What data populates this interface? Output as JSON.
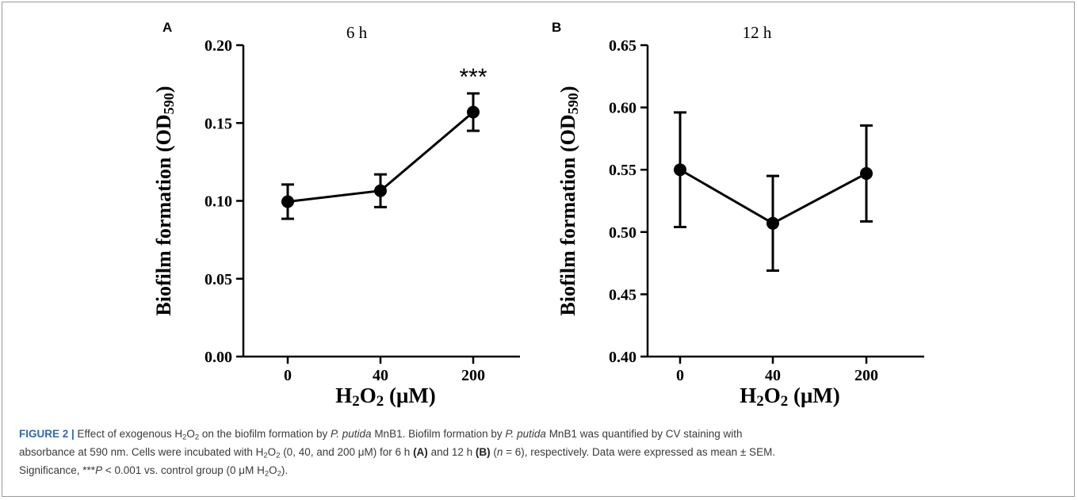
{
  "chart_data": [
    {
      "panel": "A",
      "type": "line",
      "title": "6 h",
      "ylabel": "Biofilm formation (OD590)",
      "xlabel": "H2O2 (μM)",
      "categories": [
        "0",
        "40",
        "200"
      ],
      "values": [
        0.0995,
        0.1065,
        0.157
      ],
      "error": [
        0.011,
        0.0105,
        0.012
      ],
      "significance": [
        "",
        "",
        "***"
      ],
      "ylim": [
        0.0,
        0.2
      ],
      "yticks": [
        "0.00",
        "0.05",
        "0.10",
        "0.15",
        "0.20"
      ],
      "grid": false
    },
    {
      "panel": "B",
      "type": "line",
      "title": "12 h",
      "ylabel": "Biofilm formation (OD590)",
      "xlabel": "H2O2 (μM)",
      "categories": [
        "0",
        "40",
        "200"
      ],
      "values": [
        0.55,
        0.507,
        0.547
      ],
      "error": [
        0.046,
        0.038,
        0.0385
      ],
      "significance": [
        "",
        "",
        ""
      ],
      "ylim": [
        0.4,
        0.65
      ],
      "yticks": [
        "0.40",
        "0.45",
        "0.50",
        "0.55",
        "0.60",
        "0.65"
      ],
      "grid": false
    }
  ],
  "caption": {
    "figure_label": "FIGURE 2 |",
    "line1_a": " Effect of exogenous H",
    "line1_b": "2",
    "line1_c": "O",
    "line1_d": "2",
    "line1_e": " on the biofilm formation by ",
    "line1_f": "P. putida",
    "line1_g": " MnB1. Biofilm formation by ",
    "line1_h": "P. putida",
    "line1_i": " MnB1 was quantified by CV staining with",
    "line2_a": "absorbance at 590 nm. Cells were incubated with H",
    "line2_b": "2",
    "line2_c": "O",
    "line2_d": "2",
    "line2_e": " (0, 40, and 200 μM) for 6 h ",
    "line2_f": "(A)",
    "line2_g": " and 12 h ",
    "line2_h": "(B)",
    "line2_i": " (",
    "line2_j": "n",
    "line2_k": " = 6), respectively. Data were expressed as mean ± SEM.",
    "line3_a": "Significance, ***",
    "line3_b": "P",
    "line3_c": " < 0.001 vs. control group (0 μM H",
    "line3_d": "2",
    "line3_e": "O",
    "line3_f": "2",
    "line3_g": ")."
  }
}
